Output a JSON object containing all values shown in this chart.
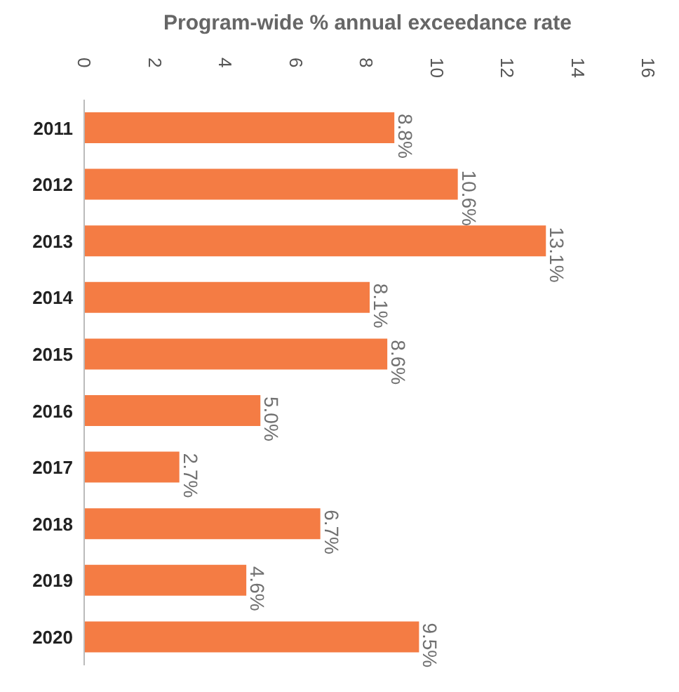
{
  "chart_data": {
    "type": "bar",
    "orientation": "horizontal",
    "title": "Program-wide % annual exceedance rate",
    "categories": [
      "2011",
      "2012",
      "2013",
      "2014",
      "2015",
      "2016",
      "2017",
      "2018",
      "2019",
      "2020"
    ],
    "values": [
      8.8,
      10.6,
      13.1,
      8.1,
      8.6,
      5.0,
      2.7,
      6.7,
      4.6,
      9.5
    ],
    "value_labels": [
      "8.8%",
      "10.6%",
      "13.1%",
      "8.1%",
      "8.6%",
      "5.0%",
      "2.7%",
      "6.7%",
      "4.6%",
      "9.5%"
    ],
    "color": "#f47c44",
    "xlim": [
      0,
      16
    ],
    "xticks": [
      0,
      2,
      4,
      6,
      8,
      10,
      12,
      14,
      16
    ],
    "grid": false,
    "legend": false
  }
}
